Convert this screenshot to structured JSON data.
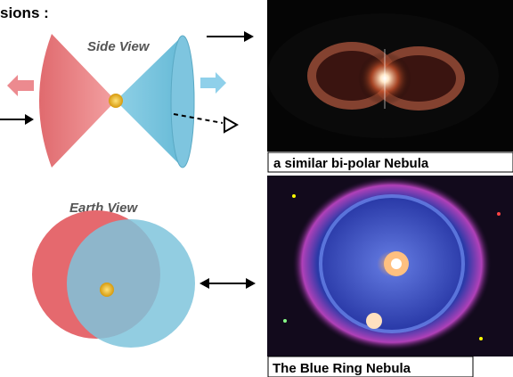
{
  "heading": "sions :",
  "diagrams": [
    {
      "label": "Side View"
    },
    {
      "label": "Earth View"
    }
  ],
  "images": [
    {
      "caption": "a similar bi-polar Nebula"
    },
    {
      "caption": "The Blue Ring Nebula"
    }
  ]
}
